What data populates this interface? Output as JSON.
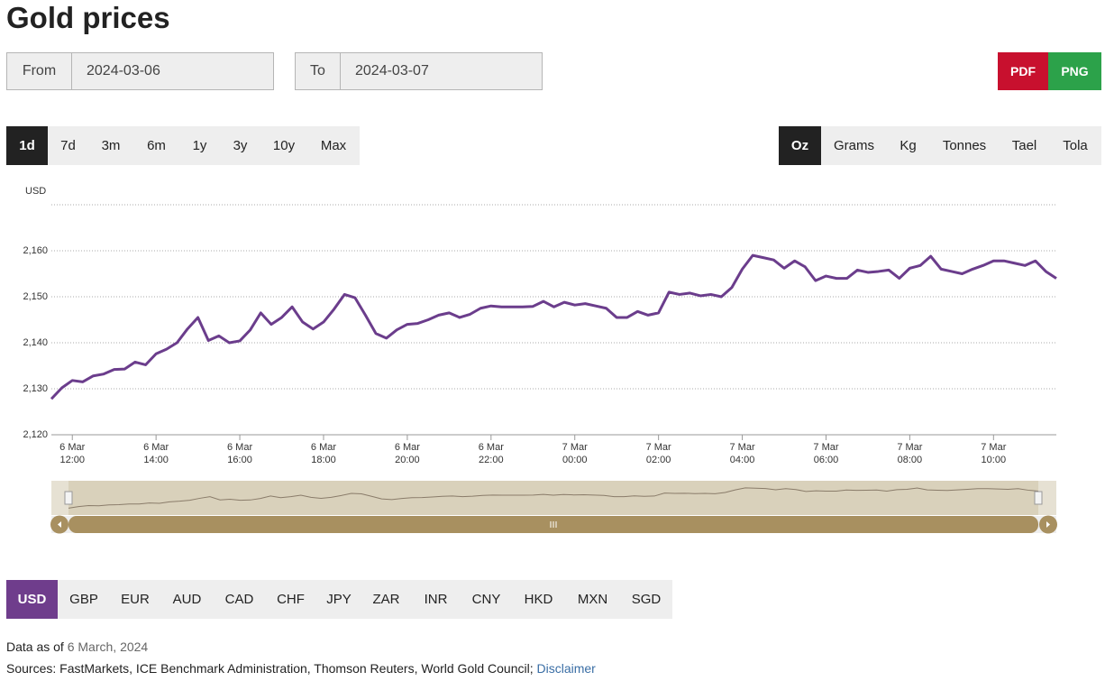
{
  "header": {
    "title": "Gold prices"
  },
  "date_range": {
    "from_label": "From",
    "from_value": "2024-03-06",
    "to_label": "To",
    "to_value": "2024-03-07"
  },
  "export_buttons": [
    "PDF",
    "PNG"
  ],
  "range_buttons": [
    "1d",
    "7d",
    "3m",
    "6m",
    "1y",
    "3y",
    "10y",
    "Max"
  ],
  "unit_buttons": [
    "Oz",
    "Grams",
    "Kg",
    "Tonnes",
    "Tael",
    "Tola"
  ],
  "chart_data": {
    "type": "line",
    "y_label": "USD",
    "ylim": [
      2120,
      2170
    ],
    "yticks": [
      {
        "value": 2120,
        "label": "2,120"
      },
      {
        "value": 2130,
        "label": "2,130"
      },
      {
        "value": 2140,
        "label": "2,140"
      },
      {
        "value": 2150,
        "label": "2,150"
      },
      {
        "value": 2160,
        "label": "2,160"
      }
    ],
    "grid": true,
    "categories": [
      null,
      null,
      "6 Mar 12:00",
      null,
      null,
      null,
      null,
      null,
      null,
      null,
      "6 Mar 14:00",
      null,
      null,
      null,
      null,
      null,
      null,
      null,
      "6 Mar 16:00",
      null,
      null,
      null,
      null,
      null,
      null,
      null,
      "6 Mar 18:00",
      null,
      null,
      null,
      null,
      null,
      null,
      null,
      "6 Mar 20:00",
      null,
      null,
      null,
      null,
      null,
      null,
      null,
      "6 Mar 22:00",
      null,
      null,
      null,
      null,
      null,
      null,
      null,
      "7 Mar 00:00",
      null,
      null,
      null,
      null,
      null,
      null,
      null,
      "7 Mar 02:00",
      null,
      null,
      null,
      null,
      null,
      null,
      null,
      "7 Mar 04:00",
      null,
      null,
      null,
      null,
      null,
      null,
      null,
      "7 Mar 06:00",
      null,
      null,
      null,
      null,
      null,
      null,
      null,
      "7 Mar 08:00",
      null,
      null,
      null,
      null,
      null,
      null,
      null,
      "7 Mar 10:00",
      null,
      null,
      null,
      null,
      null,
      null
    ],
    "series": [
      {
        "name": "USD",
        "color": "#6b3d8c",
        "values": [
          2127.8,
          2130.2,
          2131.8,
          2131.5,
          2132.8,
          2133.2,
          2134.2,
          2134.3,
          2135.8,
          2135.2,
          2137.6,
          2138.6,
          2140.0,
          2143.0,
          2145.5,
          2140.5,
          2141.5,
          2140.0,
          2140.4,
          2142.8,
          2146.5,
          2144.0,
          2145.5,
          2147.8,
          2144.5,
          2143.0,
          2144.5,
          2147.3,
          2150.5,
          2149.8,
          2146.0,
          2142.0,
          2141.0,
          2142.8,
          2144.0,
          2144.2,
          2145.0,
          2146.0,
          2146.5,
          2145.5,
          2146.2,
          2147.5,
          2148.0,
          2147.8,
          2147.8,
          2147.8,
          2147.9,
          2149.0,
          2147.8,
          2148.8,
          2148.2,
          2148.5,
          2148.0,
          2147.5,
          2145.5,
          2145.5,
          2146.8,
          2146.0,
          2146.5,
          2151.0,
          2150.5,
          2150.8,
          2150.2,
          2150.5,
          2150.0,
          2152.0,
          2156.0,
          2159.0,
          2158.5,
          2158.0,
          2156.2,
          2157.8,
          2156.5,
          2153.5,
          2154.5,
          2154.0,
          2154.0,
          2155.8,
          2155.3,
          2155.5,
          2155.8,
          2154.0,
          2156.2,
          2156.8,
          2158.8,
          2156.0,
          2155.5,
          2155.0,
          2156.0,
          2156.8,
          2157.8,
          2157.8,
          2157.3,
          2156.8,
          2157.8,
          2155.5,
          2154.0
        ]
      }
    ]
  },
  "currency_buttons": [
    "USD",
    "GBP",
    "EUR",
    "AUD",
    "CAD",
    "CHF",
    "JPY",
    "ZAR",
    "INR",
    "CNY",
    "HKD",
    "MXN",
    "SGD"
  ],
  "footer": {
    "data_as_of_label": "Data as of",
    "data_as_of_date": "6 March, 2024",
    "sources": "Sources: FastMarkets, ICE Benchmark Administration, Thomson Reuters, World Gold Council;",
    "disclaimer": "Disclaimer"
  }
}
